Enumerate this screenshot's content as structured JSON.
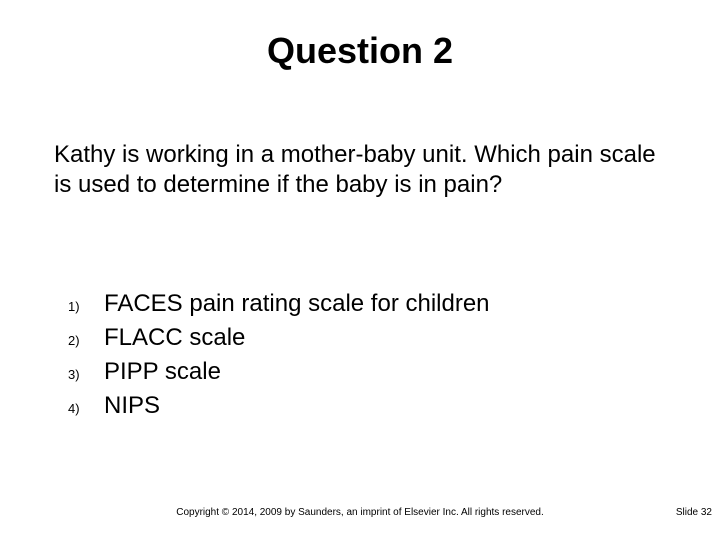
{
  "title": "Question 2",
  "question": "Kathy is working in a mother-baby unit. Which pain scale is used to determine if the baby is in pain?",
  "options": [
    {
      "num": "1)",
      "text": "FACES pain rating scale for children"
    },
    {
      "num": "2)",
      "text": "FLACC scale"
    },
    {
      "num": "3)",
      "text": "PIPP scale"
    },
    {
      "num": "4)",
      "text": "NIPS"
    }
  ],
  "copyright": "Copyright © 2014, 2009 by Saunders, an imprint of Elsevier Inc. All rights reserved.",
  "slide_number": "Slide 32",
  "style": {
    "background_color": "#ffffff",
    "title_fontsize": 36,
    "body_fontsize": 24,
    "option_num_fontsize": 13,
    "footer_fontsize": 10,
    "text_color": "#000000",
    "font_family": "Arial"
  }
}
